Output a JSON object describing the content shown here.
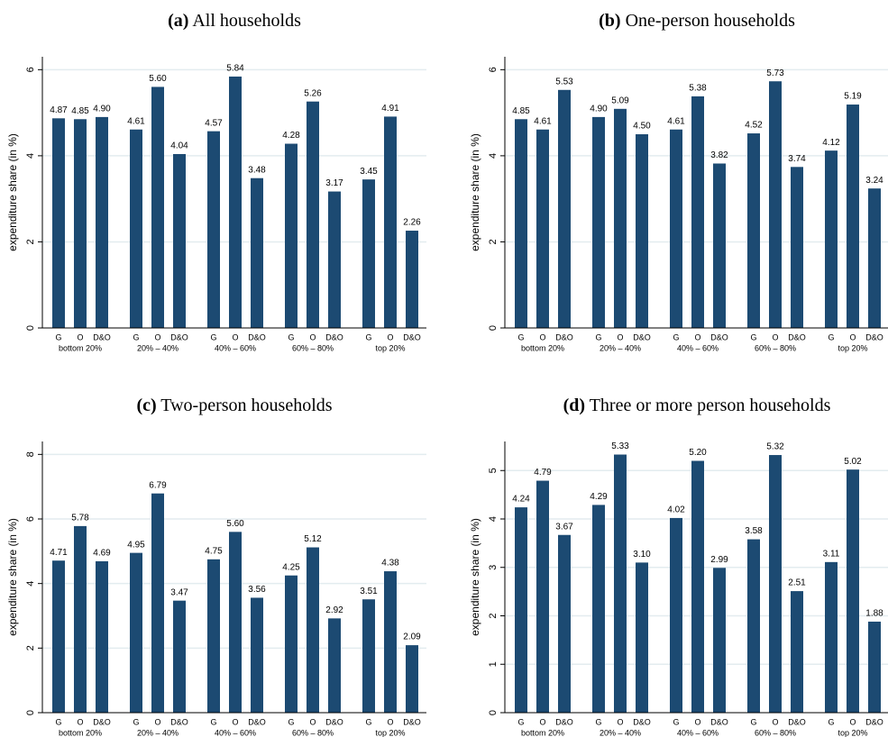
{
  "chart_data": [
    {
      "type": "bar",
      "panel_label": "(a)",
      "title": "All households",
      "y_label": "expenditure share (in %)",
      "groups": [
        "bottom 20%",
        "20% – 40%",
        "40% – 60%",
        "60% – 80%",
        "top 20%"
      ],
      "categories": [
        "G",
        "O",
        "D&O",
        "G",
        "O",
        "D&O",
        "G",
        "O",
        "D&O",
        "G",
        "O",
        "D&O",
        "G",
        "O",
        "D&O"
      ],
      "values": [
        4.87,
        4.85,
        4.9,
        4.61,
        5.6,
        4.04,
        4.57,
        5.84,
        3.48,
        4.28,
        5.26,
        3.17,
        3.45,
        4.91,
        2.26
      ],
      "value_labels": [
        "4.87",
        "4.85",
        "4.90",
        "4.61",
        "5.60",
        "4.04",
        "4.57",
        "5.84",
        "3.48",
        "4.28",
        "5.26",
        "3.17",
        "3.45",
        "4.91",
        "2.26"
      ],
      "color": "#1c4a72",
      "ylim": [
        0,
        6.3
      ],
      "yticks": [
        0,
        2,
        4,
        6
      ],
      "grid": true
    },
    {
      "type": "bar",
      "panel_label": "(b)",
      "title": "One-person households",
      "y_label": "expenditure share (in %)",
      "groups": [
        "bottom 20%",
        "20% – 40%",
        "40% – 60%",
        "60% – 80%",
        "top 20%"
      ],
      "categories": [
        "G",
        "O",
        "D&O",
        "G",
        "O",
        "D&O",
        "G",
        "O",
        "D&O",
        "G",
        "O",
        "D&O",
        "G",
        "O",
        "D&O"
      ],
      "values": [
        4.85,
        4.61,
        5.53,
        4.9,
        5.09,
        4.5,
        4.61,
        5.38,
        3.82,
        4.52,
        5.73,
        3.74,
        4.12,
        5.19,
        3.24
      ],
      "value_labels": [
        "4.85",
        "4.61",
        "5.53",
        "4.90",
        "5.09",
        "4.50",
        "4.61",
        "5.38",
        "3.82",
        "4.52",
        "5.73",
        "3.74",
        "4.12",
        "5.19",
        "3.24"
      ],
      "color": "#1c4a72",
      "ylim": [
        0,
        6.3
      ],
      "yticks": [
        0,
        2,
        4,
        6
      ],
      "grid": true
    },
    {
      "type": "bar",
      "panel_label": "(c)",
      "title": "Two-person households",
      "y_label": "expenditure share (in %)",
      "groups": [
        "bottom 20%",
        "20% – 40%",
        "40% – 60%",
        "60% – 80%",
        "top 20%"
      ],
      "categories": [
        "G",
        "O",
        "D&O",
        "G",
        "O",
        "D&O",
        "G",
        "O",
        "D&O",
        "G",
        "O",
        "D&O",
        "G",
        "O",
        "D&O"
      ],
      "values": [
        4.71,
        5.78,
        4.69,
        4.95,
        6.79,
        3.47,
        4.75,
        5.6,
        3.56,
        4.25,
        5.12,
        2.92,
        3.51,
        4.38,
        2.09
      ],
      "value_labels": [
        "4.71",
        "5.78",
        "4.69",
        "4.95",
        "6.79",
        "3.47",
        "4.75",
        "5.60",
        "3.56",
        "4.25",
        "5.12",
        "2.92",
        "3.51",
        "4.38",
        "2.09"
      ],
      "color": "#1c4a72",
      "ylim": [
        0,
        8.4
      ],
      "yticks": [
        0,
        2,
        4,
        6,
        8
      ],
      "grid": true
    },
    {
      "type": "bar",
      "panel_label": "(d)",
      "title": "Three or more person households",
      "y_label": "expenditure share (in %)",
      "groups": [
        "bottom 20%",
        "20% – 40%",
        "40% – 60%",
        "60% – 80%",
        "top 20%"
      ],
      "categories": [
        "G",
        "O",
        "D&O",
        "G",
        "O",
        "D&O",
        "G",
        "O",
        "D&O",
        "G",
        "O",
        "D&O",
        "G",
        "O",
        "D&O"
      ],
      "values": [
        4.24,
        4.79,
        3.67,
        4.29,
        5.33,
        3.1,
        4.02,
        5.2,
        2.99,
        3.58,
        5.32,
        2.51,
        3.11,
        5.02,
        1.88
      ],
      "value_labels": [
        "4.24",
        "4.79",
        "3.67",
        "4.29",
        "5.33",
        "3.10",
        "4.02",
        "5.20",
        "2.99",
        "3.58",
        "5.32",
        "2.51",
        "3.11",
        "5.02",
        "1.88"
      ],
      "color": "#1c4a72",
      "ylim": [
        0,
        5.6
      ],
      "yticks": [
        0,
        1,
        2,
        3,
        4,
        5
      ],
      "grid": true
    }
  ]
}
